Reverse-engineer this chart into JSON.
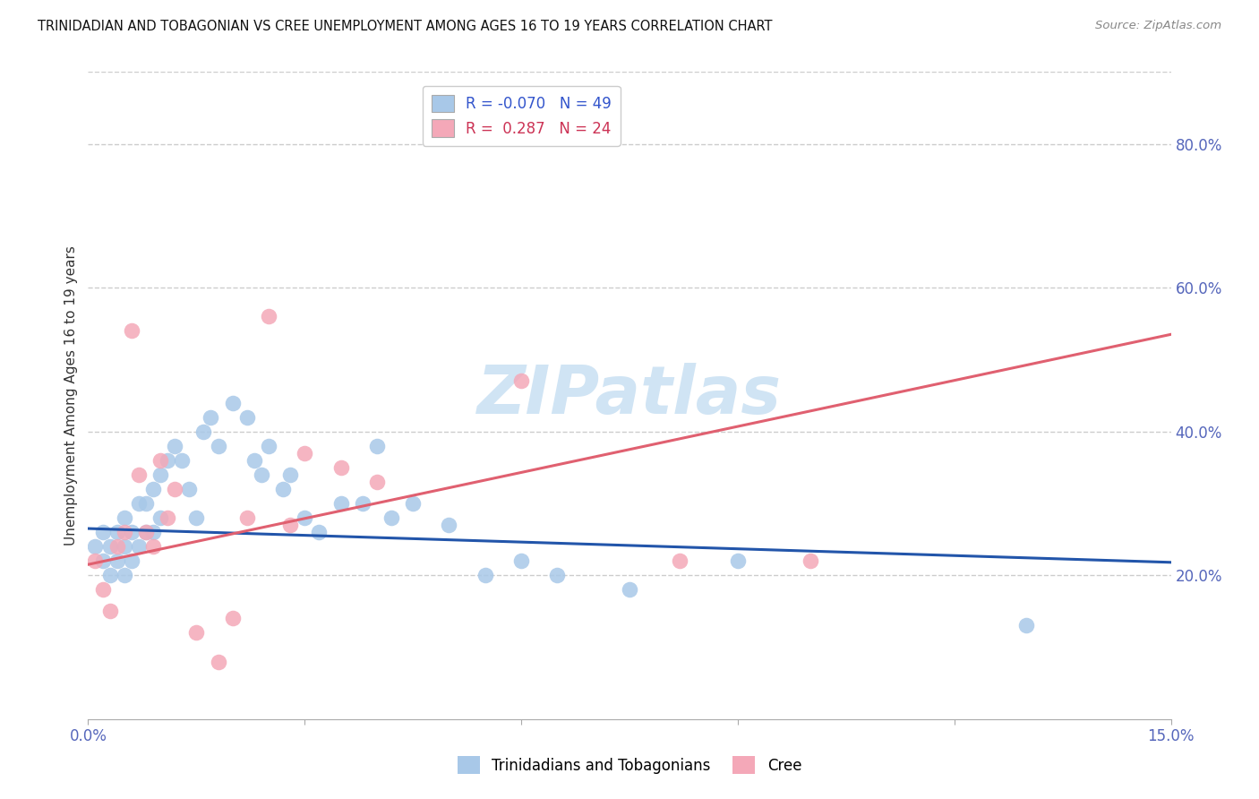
{
  "title": "TRINIDADIAN AND TOBAGONIAN VS CREE UNEMPLOYMENT AMONG AGES 16 TO 19 YEARS CORRELATION CHART",
  "source": "Source: ZipAtlas.com",
  "ylabel": "Unemployment Among Ages 16 to 19 years",
  "xlim": [
    0.0,
    0.15
  ],
  "ylim": [
    0.0,
    0.9
  ],
  "y_ticks_right": [
    0.2,
    0.4,
    0.6,
    0.8
  ],
  "y_tick_labels_right": [
    "20.0%",
    "40.0%",
    "60.0%",
    "80.0%"
  ],
  "legend_labels": [
    "R = -0.070   N = 49",
    "R =  0.287   N = 24"
  ],
  "bottom_legend_labels": [
    "Trinidadians and Tobagonians",
    "Cree"
  ],
  "blue_color": "#a8c8e8",
  "pink_color": "#f4a8b8",
  "blue_line_color": "#2255aa",
  "pink_line_color": "#e06070",
  "watermark": "ZIPatlas",
  "watermark_color": "#d0e4f4",
  "blue_x": [
    0.001,
    0.002,
    0.002,
    0.003,
    0.003,
    0.004,
    0.004,
    0.005,
    0.005,
    0.005,
    0.006,
    0.006,
    0.007,
    0.007,
    0.008,
    0.008,
    0.009,
    0.009,
    0.01,
    0.01,
    0.011,
    0.012,
    0.013,
    0.014,
    0.015,
    0.016,
    0.017,
    0.018,
    0.02,
    0.022,
    0.023,
    0.024,
    0.025,
    0.027,
    0.028,
    0.03,
    0.032,
    0.035,
    0.038,
    0.04,
    0.042,
    0.045,
    0.05,
    0.055,
    0.06,
    0.065,
    0.075,
    0.09,
    0.13
  ],
  "blue_y": [
    0.24,
    0.22,
    0.26,
    0.2,
    0.24,
    0.22,
    0.26,
    0.2,
    0.24,
    0.28,
    0.22,
    0.26,
    0.24,
    0.3,
    0.26,
    0.3,
    0.26,
    0.32,
    0.28,
    0.34,
    0.36,
    0.38,
    0.36,
    0.32,
    0.28,
    0.4,
    0.42,
    0.38,
    0.44,
    0.42,
    0.36,
    0.34,
    0.38,
    0.32,
    0.34,
    0.28,
    0.26,
    0.3,
    0.3,
    0.38,
    0.28,
    0.3,
    0.27,
    0.2,
    0.22,
    0.2,
    0.18,
    0.22,
    0.13
  ],
  "pink_x": [
    0.001,
    0.002,
    0.003,
    0.004,
    0.005,
    0.006,
    0.007,
    0.008,
    0.009,
    0.01,
    0.011,
    0.012,
    0.015,
    0.018,
    0.02,
    0.022,
    0.025,
    0.028,
    0.03,
    0.035,
    0.04,
    0.06,
    0.082,
    0.1
  ],
  "pink_y": [
    0.22,
    0.18,
    0.15,
    0.24,
    0.26,
    0.54,
    0.34,
    0.26,
    0.24,
    0.36,
    0.28,
    0.32,
    0.12,
    0.08,
    0.14,
    0.28,
    0.56,
    0.27,
    0.37,
    0.35,
    0.33,
    0.47,
    0.22,
    0.22
  ],
  "blue_line_x0": 0.0,
  "blue_line_y0": 0.265,
  "blue_line_x1": 0.15,
  "blue_line_y1": 0.218,
  "pink_line_x0": 0.0,
  "pink_line_y0": 0.215,
  "pink_line_x1": 0.15,
  "pink_line_y1": 0.535
}
